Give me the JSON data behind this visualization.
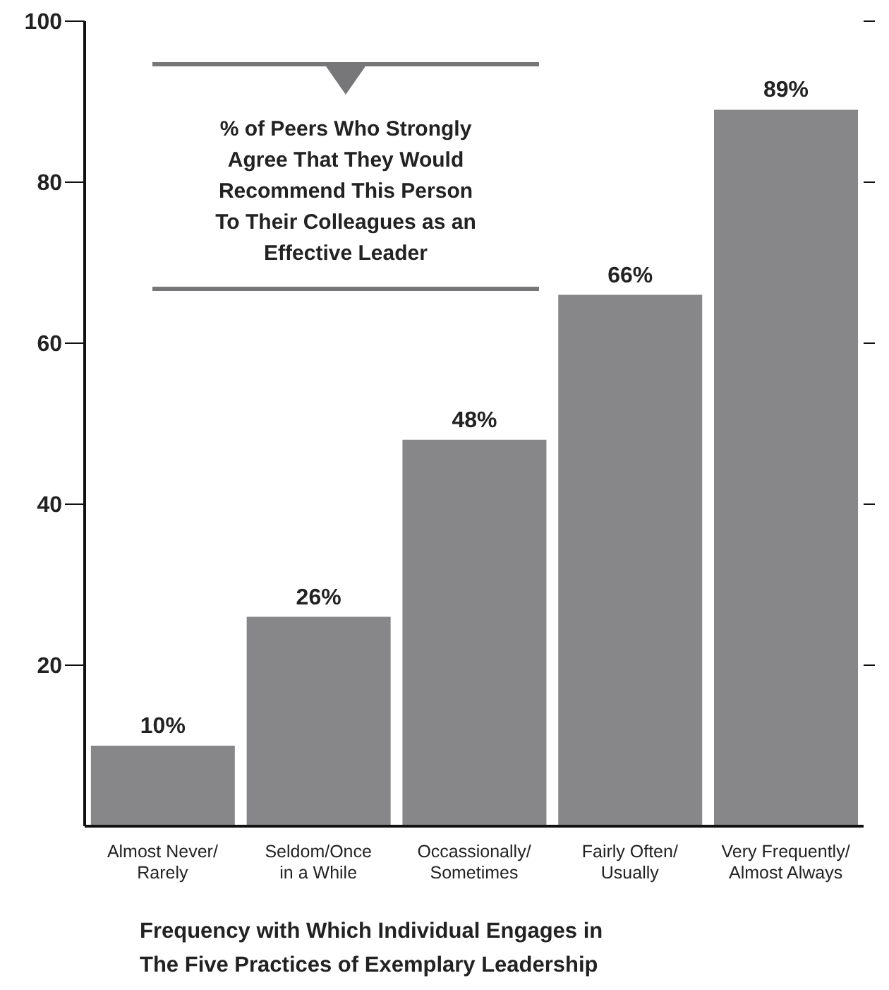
{
  "chart_data": {
    "type": "bar",
    "title": "% of Peers Who Strongly Agree That They Would Recommend This Person To Their Colleagues as an Effective Leader",
    "xlabel": "Frequency with Which Individual Engages in The Five Practices of Exemplary Leadership",
    "categories": [
      "Almost Never/ Rarely",
      "Seldom/Once in a While",
      "Occassionally/ Sometimes",
      "Fairly Often/ Usually",
      "Very Frequently/ Almost Always"
    ],
    "values": [
      10,
      26,
      48,
      66,
      89
    ],
    "value_labels": [
      "10%",
      "26%",
      "48%",
      "66%",
      "89%"
    ],
    "color": "#87878a",
    "ylim": [
      0,
      100
    ],
    "yticks": [
      20,
      40,
      60,
      80,
      100
    ]
  }
}
